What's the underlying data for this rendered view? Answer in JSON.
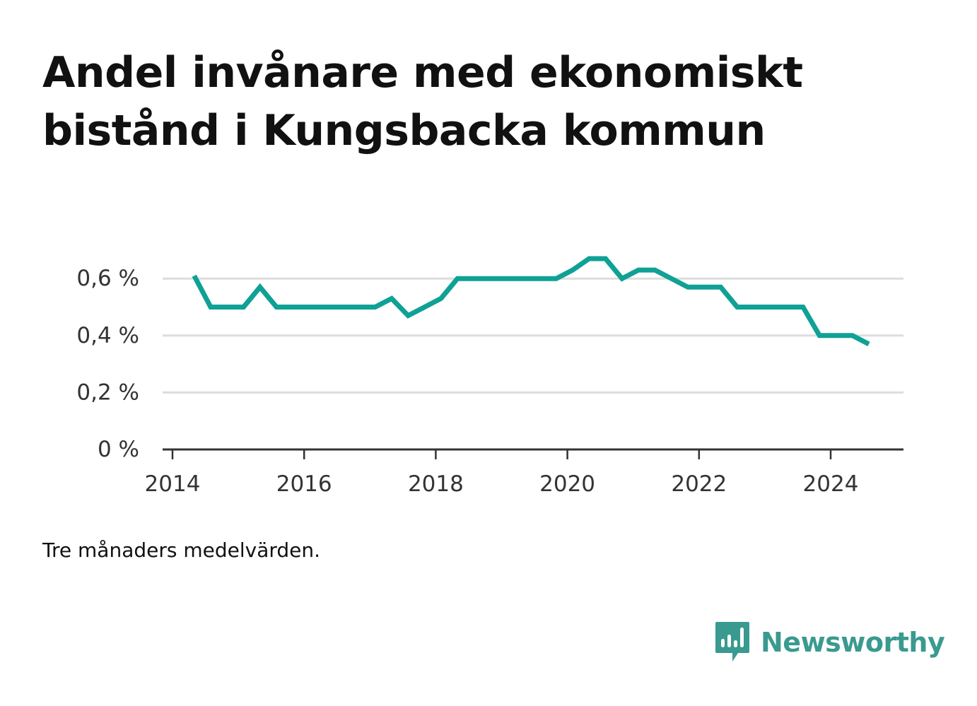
{
  "header": {
    "title": "Andel invånare med ekonomiskt bistånd i Kungsbacka kommun"
  },
  "footer": {
    "note": "Tre månaders medelvärden.",
    "brand_name": "Newsworthy",
    "brand_color": "#3a9a8f"
  },
  "colors": {
    "line": "#0fa195",
    "grid": "#dddddd",
    "axis": "#333333"
  },
  "chart_data": {
    "type": "line",
    "title": "Andel invånare med ekonomiskt bistånd i Kungsbacka kommun",
    "xlabel": "",
    "ylabel": "",
    "xlim": [
      2014,
      2025.1
    ],
    "ylim": [
      0,
      0.6
    ],
    "grid": true,
    "x_ticks": [
      2014,
      2016,
      2018,
      2020,
      2022,
      2024
    ],
    "x_tick_labels": [
      "2014",
      "2016",
      "2018",
      "2020",
      "2022",
      "2024"
    ],
    "y_ticks": [
      0,
      0.2,
      0.4,
      0.6
    ],
    "y_tick_labels": [
      "0 %",
      "0,2 %",
      "0,4 %",
      "0,6 %"
    ],
    "series": [
      {
        "name": "Andel invånare med ekonomiskt bistånd",
        "x": [
          2014.33,
          2014.58,
          2014.83,
          2015.08,
          2015.33,
          2015.58,
          2015.83,
          2016.08,
          2016.33,
          2016.58,
          2016.83,
          2017.08,
          2017.33,
          2017.58,
          2017.83,
          2018.08,
          2018.33,
          2018.58,
          2018.83,
          2019.08,
          2019.33,
          2019.58,
          2019.83,
          2020.08,
          2020.33,
          2020.58,
          2020.83,
          2021.08,
          2021.33,
          2021.58,
          2021.83,
          2022.08,
          2022.33,
          2022.58,
          2022.83,
          2023.08,
          2023.33,
          2023.58,
          2023.83,
          2024.08,
          2024.33,
          2024.58
        ],
        "values": [
          0.61,
          0.5,
          0.5,
          0.5,
          0.57,
          0.5,
          0.5,
          0.5,
          0.5,
          0.5,
          0.5,
          0.5,
          0.53,
          0.47,
          0.5,
          0.53,
          0.6,
          0.6,
          0.6,
          0.6,
          0.6,
          0.6,
          0.6,
          0.63,
          0.67,
          0.67,
          0.6,
          0.63,
          0.63,
          0.6,
          0.57,
          0.57,
          0.57,
          0.5,
          0.5,
          0.5,
          0.5,
          0.5,
          0.4,
          0.4,
          0.4,
          0.37
        ]
      }
    ]
  }
}
